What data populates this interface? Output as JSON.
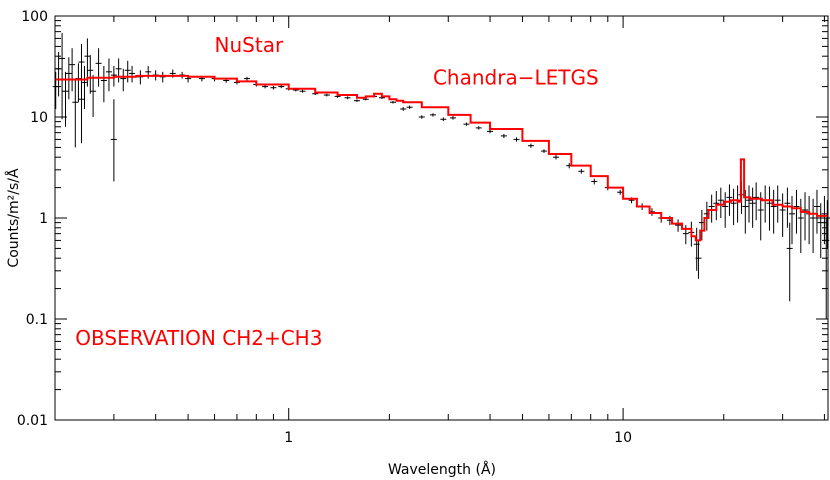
{
  "chart_data": {
    "type": "line",
    "title": "",
    "xlabel": "Wavelength (Å)",
    "ylabel": "Counts/m²/s/Å",
    "x_scale": "log",
    "y_scale": "log",
    "xlim": [
      0.2,
      41
    ],
    "ylim": [
      0.01,
      100
    ],
    "x_ticks": [
      {
        "value": 1,
        "label": "1"
      },
      {
        "value": 10,
        "label": "10"
      }
    ],
    "y_ticks": [
      {
        "value": 0.01,
        "label": "0.01"
      },
      {
        "value": 0.1,
        "label": "0.1"
      },
      {
        "value": 1,
        "label": "1"
      },
      {
        "value": 10,
        "label": "10"
      },
      {
        "value": 100,
        "label": "100"
      }
    ],
    "annotations": [
      {
        "id": "nustar",
        "text": "NuStar",
        "x": 0.6,
        "y": 44
      },
      {
        "id": "letgs",
        "text": "Chandra−LETGS",
        "x": 2.7,
        "y": 21
      },
      {
        "id": "observation",
        "text": "OBSERVATION CH2+CH3",
        "x": 0.23,
        "y": 0.055
      }
    ],
    "colors": {
      "data": "#000000",
      "model": "#ff0000",
      "annotation": "#ff0000"
    },
    "grid": false,
    "series": [
      {
        "role": "model",
        "color": "#ff0000",
        "x": [
          0.2,
          0.25,
          0.3,
          0.35,
          0.4,
          0.5,
          0.6,
          0.7,
          0.8,
          1.0,
          1.2,
          1.4,
          1.6,
          1.7,
          1.8,
          1.9,
          2.0,
          2.1,
          2.2,
          2.5,
          3.0,
          3.5,
          4.0,
          5.0,
          6.0,
          7.0,
          8.0,
          9.0,
          10.0,
          11.0,
          12.0,
          13.0,
          14.0,
          15.0,
          16.0,
          16.5,
          17.0,
          17.5,
          18.0,
          19.0,
          20.0,
          21.0,
          22.0,
          22.5,
          23.0,
          24.0,
          26.0,
          28.0,
          30.0,
          32.0,
          34.0,
          36.0,
          38.0,
          41.0
        ],
        "y": [
          23.5,
          24.5,
          25.0,
          25.5,
          25.5,
          25.0,
          24.0,
          22.5,
          21.0,
          19.0,
          17.5,
          16.5,
          15.5,
          16.0,
          17.0,
          16.0,
          15.0,
          14.5,
          14.0,
          12.5,
          10.5,
          8.8,
          7.6,
          5.8,
          4.3,
          3.3,
          2.6,
          2.0,
          1.55,
          1.3,
          1.12,
          1.0,
          0.88,
          0.78,
          0.66,
          0.6,
          0.75,
          1.0,
          1.2,
          1.35,
          1.45,
          1.5,
          1.45,
          3.8,
          1.6,
          1.55,
          1.5,
          1.35,
          1.3,
          1.25,
          1.15,
          1.1,
          1.05,
          1.05
        ]
      },
      {
        "role": "data",
        "color": "#000000",
        "x": [
          0.201,
          0.205,
          0.21,
          0.215,
          0.22,
          0.225,
          0.23,
          0.235,
          0.24,
          0.245,
          0.25,
          0.255,
          0.26,
          0.27,
          0.28,
          0.29,
          0.3,
          0.31,
          0.32,
          0.33,
          0.34,
          0.36,
          0.38,
          0.4,
          0.42,
          0.45,
          0.48,
          0.5,
          0.55,
          0.6,
          0.65,
          0.7,
          0.75,
          0.8,
          0.85,
          0.9,
          0.95,
          1.0,
          1.05,
          1.1,
          1.2,
          1.3,
          1.4,
          1.5,
          1.6,
          1.7,
          1.8,
          1.9,
          2.05,
          2.2,
          2.3,
          2.5,
          2.7,
          2.9,
          3.1,
          3.4,
          3.7,
          4.0,
          4.4,
          4.8,
          5.3,
          5.8,
          6.3,
          6.9,
          7.5,
          8.2,
          9.0,
          9.8,
          10.6,
          11.4,
          12.2,
          13.0,
          13.8,
          14.6,
          15.4,
          16.0,
          16.6,
          17.2,
          17.8,
          18.4,
          19.0,
          19.6,
          20.2,
          20.8,
          21.4,
          22.0,
          22.6,
          23.2,
          23.8,
          24.4,
          25.0,
          25.8,
          26.6,
          27.4,
          28.2,
          29.0,
          30.0,
          31.0,
          32.0,
          33.0,
          34.0,
          35.0,
          36.0,
          37.0,
          38.0,
          39.0,
          40.0,
          40.8
        ],
        "y": [
          20,
          30,
          38,
          18,
          27,
          33,
          14,
          24,
          35,
          22,
          40,
          29,
          18,
          34,
          23,
          28,
          26,
          30,
          24,
          29,
          27,
          25,
          28,
          26,
          25,
          27,
          26,
          24,
          24,
          24,
          23,
          22,
          24,
          21,
          20,
          19.5,
          20,
          19,
          18.5,
          18,
          17,
          16.5,
          16,
          15.5,
          14.5,
          15,
          16,
          15.5,
          14,
          12,
          12.5,
          10,
          10.5,
          9.5,
          9.8,
          8.5,
          7.8,
          7.2,
          6.5,
          6.0,
          5.2,
          4.6,
          4.0,
          3.3,
          2.9,
          2.3,
          2.0,
          1.8,
          1.5,
          1.3,
          1.15,
          1.0,
          0.95,
          0.85,
          0.7,
          0.72,
          0.55,
          0.9,
          1.1,
          1.3,
          1.4,
          1.5,
          1.3,
          1.6,
          1.4,
          1.5,
          1.7,
          1.3,
          1.5,
          1.4,
          1.6,
          1.2,
          1.5,
          1.4,
          1.3,
          1.5,
          1.2,
          1.4,
          1.1,
          1.3,
          1.0,
          1.2,
          1.1,
          1.0,
          1.3,
          0.9,
          1.1,
          1.0
        ],
        "yerr": [
          8,
          14,
          30,
          10,
          12,
          15,
          9,
          10,
          18,
          10,
          20,
          12,
          8,
          14,
          9,
          10,
          6,
          8,
          6,
          7,
          5,
          4,
          4,
          3,
          3,
          2.5,
          2,
          2,
          1.5,
          1.5,
          1.2,
          1,
          1,
          1,
          0.8,
          0.8,
          0.7,
          0.7,
          0.6,
          0.6,
          0.5,
          0.5,
          0.5,
          0.5,
          0.4,
          0.4,
          0.4,
          0.4,
          0.4,
          0.5,
          0.5,
          0.4,
          0.4,
          0.4,
          0.4,
          0.3,
          0.3,
          0.3,
          0.3,
          0.3,
          0.25,
          0.2,
          0.2,
          0.2,
          0.15,
          0.15,
          0.12,
          0.1,
          0.1,
          0.1,
          0.1,
          0.1,
          0.1,
          0.12,
          0.15,
          0.2,
          0.25,
          0.3,
          0.35,
          0.4,
          0.45,
          0.5,
          0.5,
          0.55,
          0.55,
          0.6,
          0.6,
          0.6,
          0.6,
          0.6,
          0.65,
          0.6,
          0.6,
          0.65,
          0.6,
          0.6,
          0.55,
          0.6,
          0.55,
          0.6,
          0.55,
          0.6,
          0.55,
          0.55,
          0.6,
          0.5,
          0.55,
          0.5
        ]
      }
    ],
    "outliers": [
      {
        "x": 0.3,
        "y": 6,
        "ylo": 2.3,
        "yhi": 15
      },
      {
        "x": 0.24,
        "y": 15,
        "ylo": 5.5,
        "yhi": 32
      },
      {
        "x": 16.8,
        "y": 0.4,
        "ylo": 0.25,
        "yhi": 0.6
      },
      {
        "x": 31.5,
        "y": 0.5,
        "ylo": 0.15,
        "yhi": 0.9
      },
      {
        "x": 40.5,
        "y": 0.6,
        "ylo": 0.1,
        "yhi": 1.0
      }
    ]
  }
}
